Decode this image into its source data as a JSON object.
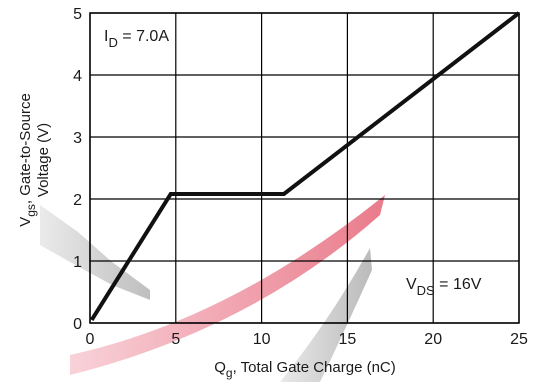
{
  "chart_data": {
    "type": "line",
    "xlabel": {
      "main": "Q",
      "sub": "g",
      "rest": ", Total Gate Charge (nC)"
    },
    "ylabel": {
      "line1_main": "V",
      "line1_sub": "gs",
      "line1_rest": ", Gate-to-Source",
      "line2": "Voltage (V)"
    },
    "xlim": [
      0,
      25
    ],
    "ylim": [
      0,
      5
    ],
    "x_ticks": [
      0,
      5,
      10,
      15,
      20,
      25
    ],
    "y_ticks": [
      0,
      1,
      2,
      3,
      4,
      5
    ],
    "grid": true,
    "annotations": {
      "id": {
        "main": "I",
        "sub": "D",
        "rest": " = 7.0A"
      },
      "vds": {
        "main": "V",
        "sub": "DS",
        "rest": " = 16V"
      }
    },
    "series": [
      {
        "x": [
          0.1,
          4.7,
          11.3,
          25
        ],
        "y": [
          0.05,
          2.08,
          2.08,
          5.0
        ]
      }
    ]
  }
}
